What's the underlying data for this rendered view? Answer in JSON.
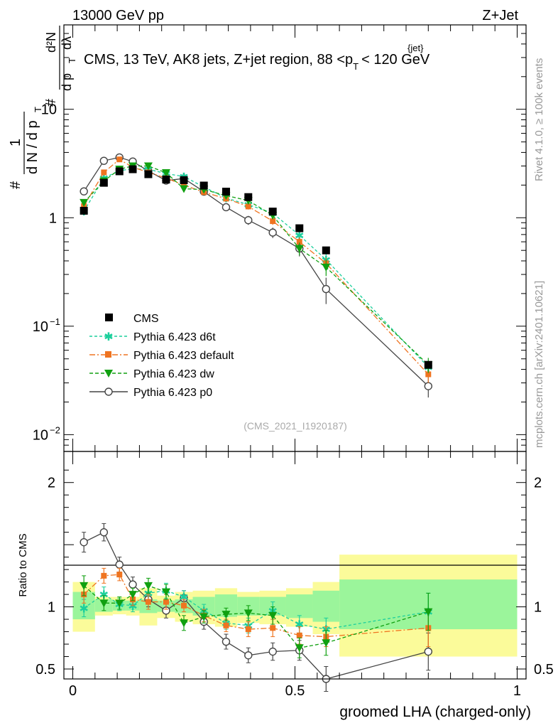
{
  "header": {
    "left": "13000 GeV pp",
    "right": "Z+Jet"
  },
  "side_labels": {
    "rivet": "Rivet 4.1.0, ≥ 100k events",
    "mcplots": "mcplots.cern.ch [arXiv:2401.10621]"
  },
  "main": {
    "title_main": "CMS, 13 TeV, AK8 jets, Z+jet region, 88 <p",
    "title_sub": "T",
    "title_sup": "{jet}",
    "title_tail": "< 120 GeV",
    "analysis_id": "(CMS_2021_I1920187)",
    "ylabel_parts": [
      "#",
      "1",
      "d N / d p",
      "T",
      "#",
      "d²N",
      "d p",
      "T",
      "dλ"
    ],
    "y_ticks": [
      {
        "value": 10,
        "label": "10"
      },
      {
        "value": 1,
        "label": "1"
      },
      {
        "value": 0.1,
        "label": "10",
        "sup": "−1"
      },
      {
        "value": 0.01,
        "label": "10",
        "sup": "−2"
      }
    ],
    "legend": [
      {
        "name": "CMS"
      },
      {
        "name": "Pythia 6.423 d6t"
      },
      {
        "name": "Pythia 6.423 default"
      },
      {
        "name": "Pythia 6.423 dw"
      },
      {
        "name": "Pythia 6.423 p0"
      }
    ]
  },
  "ratio": {
    "ylabel": "Ratio to CMS",
    "y_ticks": [
      {
        "value": 0.5,
        "label": "0.5"
      },
      {
        "value": 1,
        "label": "1"
      },
      {
        "value": 2,
        "label": "2"
      }
    ]
  },
  "x_axis": {
    "label": "groomed LHA (charged-only)",
    "ticks": [
      {
        "value": 0,
        "label": "0"
      },
      {
        "value": 0.5,
        "label": "0.5"
      },
      {
        "value": 1,
        "label": "1"
      }
    ]
  },
  "chart_data": {
    "type": "scatter",
    "title": "CMS, 13 TeV, AK8 jets, Z+jet region, 88 <p_T^{jet}< 120 GeV",
    "xlabel": "groomed LHA (charged-only)",
    "ylabel": "1/(dN/dpT) d²N/(dpT dλ)",
    "xlim": [
      -0.02,
      1.02
    ],
    "ylim": [
      0.007,
      60
    ],
    "yscale": "log",
    "ratio_ylim": [
      0.42,
      2.25
    ],
    "bins": [
      [
        0,
        0.05
      ],
      [
        0.05,
        0.09
      ],
      [
        0.09,
        0.12
      ],
      [
        0.12,
        0.15
      ],
      [
        0.15,
        0.19
      ],
      [
        0.19,
        0.23
      ],
      [
        0.23,
        0.27
      ],
      [
        0.27,
        0.32
      ],
      [
        0.32,
        0.37
      ],
      [
        0.37,
        0.42
      ],
      [
        0.42,
        0.48
      ],
      [
        0.48,
        0.54
      ],
      [
        0.54,
        0.6
      ],
      [
        0.6,
        1.0
      ]
    ],
    "x": [
      0.025,
      0.07,
      0.105,
      0.135,
      0.17,
      0.21,
      0.25,
      0.295,
      0.345,
      0.395,
      0.45,
      0.51,
      0.57,
      0.8
    ],
    "series": [
      {
        "name": "CMS",
        "color": "#000000",
        "marker": "square",
        "values": [
          1.16,
          2.1,
          2.68,
          2.8,
          2.52,
          2.25,
          2.22,
          1.98,
          1.74,
          1.55,
          1.14,
          0.8,
          0.5,
          0.044
        ]
      },
      {
        "name": "Pythia 6.423 d6t",
        "color": "#1ccf9c",
        "marker": "star",
        "dash": "4,3",
        "values": [
          1.15,
          2.32,
          2.72,
          2.82,
          2.8,
          2.55,
          2.4,
          1.92,
          1.52,
          1.32,
          1.1,
          0.69,
          0.41,
          0.042
        ],
        "errors": [
          0.07,
          0.1,
          0.12,
          0.12,
          0.12,
          0.11,
          0.1,
          0.09,
          0.08,
          0.08,
          0.07,
          0.06,
          0.06,
          0.006
        ],
        "ratio": [
          0.99,
          1.1,
          1.02,
          1.01,
          1.11,
          1.13,
          1.08,
          0.97,
          0.87,
          0.85,
          0.97,
          0.86,
          0.82,
          0.96
        ],
        "ratio_err": [
          0.07,
          0.06,
          0.05,
          0.05,
          0.06,
          0.06,
          0.05,
          0.05,
          0.05,
          0.06,
          0.07,
          0.07,
          0.09,
          0.15
        ]
      },
      {
        "name": "Pythia 6.423 default",
        "color": "#ef7420",
        "marker": "square",
        "dash": "8,3,2,3",
        "values": [
          1.28,
          2.62,
          3.45,
          2.92,
          2.62,
          2.32,
          2.0,
          1.72,
          1.5,
          1.27,
          0.93,
          0.6,
          0.38,
          0.036
        ],
        "errors": [
          0.08,
          0.12,
          0.14,
          0.12,
          0.12,
          0.11,
          0.1,
          0.09,
          0.08,
          0.08,
          0.07,
          0.06,
          0.05,
          0.006
        ],
        "ratio": [
          1.1,
          1.25,
          1.26,
          1.06,
          1.04,
          1.04,
          1.01,
          0.93,
          0.85,
          0.82,
          0.83,
          0.77,
          0.76,
          0.83
        ],
        "ratio_err": [
          0.07,
          0.06,
          0.05,
          0.05,
          0.06,
          0.06,
          0.05,
          0.05,
          0.05,
          0.06,
          0.07,
          0.07,
          0.08,
          0.15
        ]
      },
      {
        "name": "Pythia 6.423 dw",
        "color": "#10a010",
        "marker": "triangle-down",
        "dash": "5,3",
        "values": [
          1.38,
          2.18,
          2.8,
          3.0,
          3.0,
          2.6,
          1.85,
          1.82,
          1.6,
          1.44,
          1.05,
          0.52,
          0.35,
          0.044
        ],
        "errors": [
          0.08,
          0.1,
          0.12,
          0.12,
          0.13,
          0.12,
          0.11,
          0.1,
          0.09,
          0.09,
          0.08,
          0.07,
          0.06,
          0.007
        ],
        "ratio": [
          1.17,
          1.03,
          1.03,
          1.1,
          1.17,
          1.12,
          0.87,
          0.92,
          0.94,
          0.95,
          0.93,
          0.67,
          0.71,
          0.96
        ],
        "ratio_err": [
          0.08,
          0.06,
          0.05,
          0.05,
          0.06,
          0.06,
          0.06,
          0.05,
          0.05,
          0.06,
          0.07,
          0.08,
          0.1,
          0.15
        ]
      },
      {
        "name": "Pythia 6.423 p0",
        "color": "#444444",
        "marker": "circle-open",
        "dash": "",
        "values": [
          1.75,
          3.35,
          3.6,
          3.3,
          2.7,
          2.2,
          2.3,
          1.74,
          1.25,
          0.95,
          0.73,
          0.52,
          0.22,
          0.028
        ],
        "errors": [
          0.1,
          0.15,
          0.16,
          0.15,
          0.13,
          0.12,
          0.12,
          0.1,
          0.09,
          0.09,
          0.08,
          0.08,
          0.06,
          0.006
        ],
        "ratio": [
          1.52,
          1.6,
          1.34,
          1.18,
          1.06,
          0.97,
          1.07,
          0.88,
          0.72,
          0.61,
          0.64,
          0.65,
          0.42,
          0.64
        ],
        "ratio_err": [
          0.08,
          0.07,
          0.06,
          0.06,
          0.06,
          0.06,
          0.06,
          0.06,
          0.06,
          0.06,
          0.07,
          0.08,
          0.1,
          0.15
        ]
      }
    ],
    "uncertainty_bands": {
      "inner_color": "#9bf59b",
      "outer_color": "#fbfb9a",
      "inner": [
        [
          0.9,
          1.12
        ],
        [
          0.96,
          1.06
        ],
        [
          0.97,
          1.05
        ],
        [
          0.97,
          1.05
        ],
        [
          0.95,
          1.06
        ],
        [
          0.96,
          1.05
        ],
        [
          0.95,
          1.06
        ],
        [
          0.93,
          1.08
        ],
        [
          0.92,
          1.1
        ],
        [
          0.93,
          1.08
        ],
        [
          0.93,
          1.08
        ],
        [
          0.91,
          1.1
        ],
        [
          0.88,
          1.13
        ],
        [
          0.82,
          1.22
        ]
      ],
      "outer": [
        [
          0.8,
          1.2
        ],
        [
          0.93,
          1.08
        ],
        [
          0.94,
          1.08
        ],
        [
          0.93,
          1.08
        ],
        [
          0.85,
          1.15
        ],
        [
          0.91,
          1.09
        ],
        [
          0.88,
          1.12
        ],
        [
          0.86,
          1.13
        ],
        [
          0.84,
          1.15
        ],
        [
          0.87,
          1.12
        ],
        [
          0.86,
          1.13
        ],
        [
          0.84,
          1.15
        ],
        [
          0.78,
          1.2
        ],
        [
          0.6,
          1.42
        ]
      ]
    }
  }
}
